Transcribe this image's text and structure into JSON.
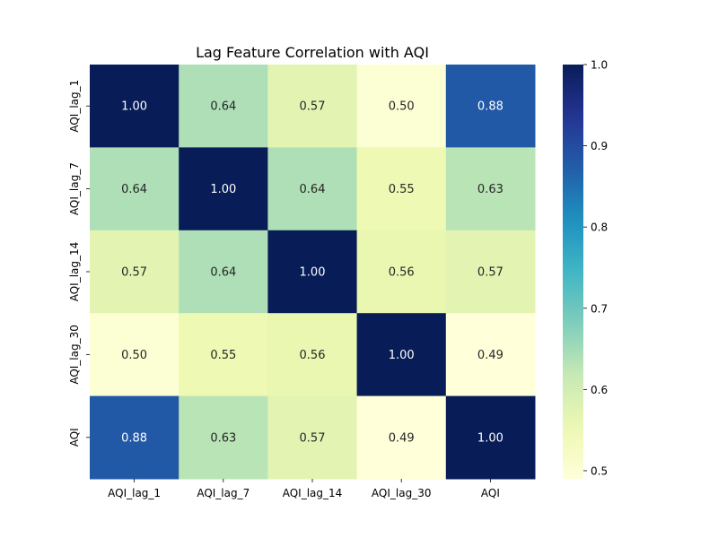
{
  "chart_data": {
    "type": "heatmap",
    "title": "Lag Feature Correlation with AQI",
    "rows": [
      "AQI_lag_1",
      "AQI_lag_7",
      "AQI_lag_14",
      "AQI_lag_30",
      "AQI"
    ],
    "columns": [
      "AQI_lag_1",
      "AQI_lag_7",
      "AQI_lag_14",
      "AQI_lag_30",
      "AQI"
    ],
    "values": [
      [
        1.0,
        0.64,
        0.57,
        0.5,
        0.88
      ],
      [
        0.64,
        1.0,
        0.64,
        0.55,
        0.63
      ],
      [
        0.57,
        0.64,
        1.0,
        0.56,
        0.57
      ],
      [
        0.5,
        0.55,
        0.56,
        1.0,
        0.49
      ],
      [
        0.88,
        0.63,
        0.57,
        0.49,
        1.0
      ]
    ],
    "value_format": "0.00",
    "colormap": "YlGnBu",
    "colorbar": {
      "range": [
        0.49,
        1.0
      ],
      "ticks": [
        0.5,
        0.6,
        0.7,
        0.8,
        0.9,
        1.0
      ],
      "tick_labels": [
        "0.5",
        "0.6",
        "0.7",
        "0.8",
        "0.9",
        "1.0"
      ],
      "placement": "right"
    }
  }
}
